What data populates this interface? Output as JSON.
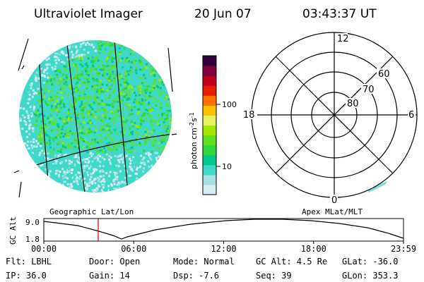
{
  "header": {
    "instrument": "Ultraviolet Imager",
    "date": "20 Jun 07",
    "time": "03:43:37 UT"
  },
  "colorbar": {
    "unit_prefix": "photon cm",
    "unit_exp1": "-2",
    "unit_mid": "s",
    "unit_exp2": "-1",
    "tick_100": "100",
    "tick_10": "10",
    "colors": [
      "#d8ecf4",
      "#a8e0e8",
      "#40d8c8",
      "#00c890",
      "#30d840",
      "#60e020",
      "#a0e800",
      "#e8f060",
      "#ffc000",
      "#ff7000",
      "#e82000",
      "#c00020",
      "#800040",
      "#300040"
    ]
  },
  "polar": {
    "mlt_12": "12",
    "mlt_18": "18",
    "mlt_6": "6",
    "mlt_0": "0",
    "lat_60": "60",
    "lat_70": "70",
    "lat_80": "80"
  },
  "labels": {
    "left_caption": "Geographic Lat/Lon",
    "right_caption": "Apex MLat/MLT"
  },
  "timeline": {
    "ylabel": "GC Alt",
    "y_top": "9.0",
    "y_bottom": "1.8",
    "ticks": [
      "00:00",
      "06:00",
      "12:00",
      "18:00",
      "23:59"
    ],
    "colors": {
      "marker": "#cc0000"
    }
  },
  "info": {
    "flt": "Flt: LBHL",
    "ip": "IP: 36.0",
    "door": "Door: Open",
    "gain": "Gain: 14",
    "mode": "Mode: Normal",
    "dsp": "Dsp:    -7.6",
    "gc_alt": "GC Alt: 4.5 Re",
    "seq": "Seq: 39",
    "glat": "GLat: -36.0",
    "glon": "GLon: 353.3"
  }
}
